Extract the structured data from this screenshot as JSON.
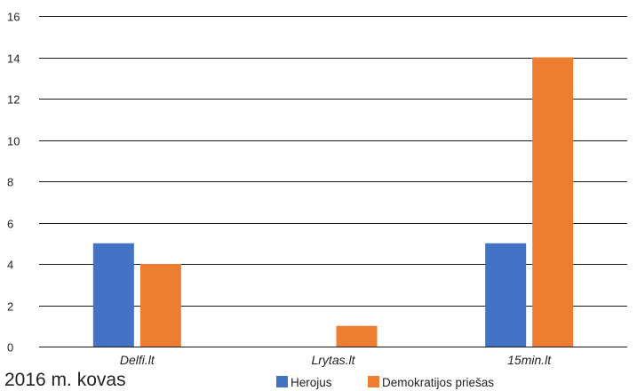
{
  "caption": "2016 m. kovas",
  "chart_data": {
    "type": "bar",
    "categories": [
      "Delfi.lt",
      "Lrytas.lt",
      "15min.lt"
    ],
    "series": [
      {
        "name": "Herojus",
        "values": [
          5,
          0,
          5
        ],
        "color": "#4472C4"
      },
      {
        "name": "Demokratijos priešas",
        "values": [
          4,
          1,
          14
        ],
        "color": "#ED7D31"
      }
    ],
    "title": "",
    "xlabel": "",
    "ylabel": "",
    "ylim": [
      0,
      16
    ],
    "yticks": [
      "0",
      "2",
      "4",
      "6",
      "8",
      "10",
      "12",
      "14",
      "16"
    ],
    "grid": true,
    "legend_position": "bottom"
  }
}
